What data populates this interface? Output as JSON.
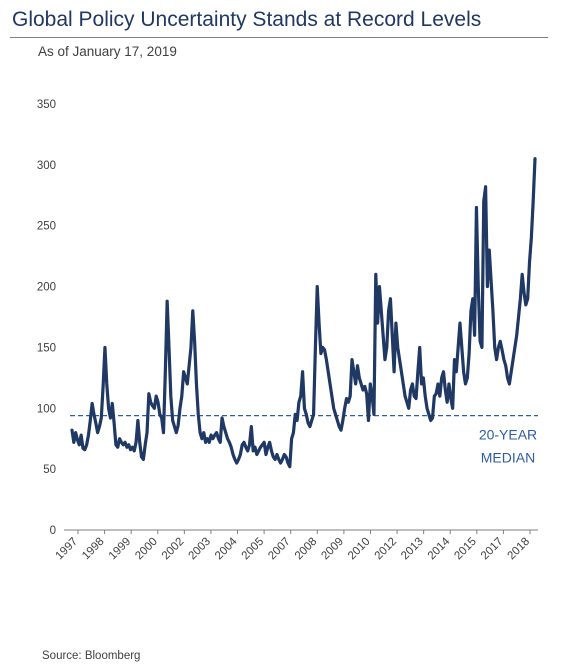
{
  "header": {
    "title": "Global Policy Uncertainty Stands at Record Levels",
    "subtitle": "As of January 17, 2019"
  },
  "footer": {
    "source": "Source: Bloomberg"
  },
  "colors": {
    "series": "#1f3864",
    "median": "#2e5da8",
    "axis": "#7f7f7f",
    "title": "#1f3864"
  },
  "chart_data": {
    "type": "line",
    "title": "Global Policy Uncertainty Stands at Record Levels",
    "subtitle": "As of January 17, 2019",
    "xlabel": "",
    "ylabel": "",
    "ylim": [
      0,
      350
    ],
    "y_ticks": [
      0,
      50,
      100,
      150,
      200,
      250,
      300,
      350
    ],
    "x_ticks": [
      "1997",
      "1998",
      "1999",
      "2000",
      "2002",
      "2003",
      "2004",
      "2005",
      "2007",
      "2008",
      "2009",
      "2010",
      "2012",
      "2013",
      "2014",
      "2015",
      "2017",
      "2018"
    ],
    "grid": false,
    "legend": "none",
    "median": {
      "value": 94,
      "label_line1": "20-YEAR",
      "label_line2": "MEDIAN"
    },
    "series": [
      {
        "values": [
          82,
          72,
          80,
          74,
          70,
          78,
          67,
          66,
          70,
          78,
          90,
          104,
          95,
          88,
          80,
          85,
          92,
          118,
          150,
          120,
          100,
          92,
          104,
          88,
          70,
          68,
          75,
          72,
          70,
          72,
          68,
          70,
          66,
          68,
          65,
          72,
          90,
          72,
          60,
          58,
          70,
          80,
          112,
          105,
          102,
          100,
          110,
          105,
          95,
          92,
          80,
          130,
          188,
          150,
          110,
          90,
          85,
          80,
          86,
          100,
          110,
          130,
          125,
          120,
          135,
          150,
          180,
          155,
          120,
          95,
          80,
          75,
          80,
          72,
          75,
          72,
          78,
          75,
          78,
          80,
          75,
          72,
          92,
          85,
          80,
          75,
          72,
          68,
          62,
          58,
          55,
          58,
          62,
          70,
          72,
          68,
          65,
          70,
          85,
          65,
          68,
          62,
          65,
          68,
          70,
          72,
          62,
          68,
          72,
          65,
          60,
          58,
          62,
          58,
          55,
          58,
          62,
          60,
          55,
          52,
          75,
          80,
          95,
          90,
          105,
          110,
          130,
          100,
          95,
          88,
          85,
          90,
          95,
          150,
          200,
          170,
          145,
          150,
          148,
          140,
          130,
          120,
          110,
          100,
          95,
          90,
          85,
          82,
          90,
          100,
          108,
          105,
          110,
          140,
          130,
          120,
          135,
          125,
          120,
          115,
          118,
          112,
          90,
          120,
          110,
          95,
          210,
          170,
          200,
          180,
          160,
          140,
          150,
          180,
          190,
          160,
          130,
          170,
          150,
          140,
          130,
          120,
          110,
          105,
          100,
          115,
          120,
          110,
          108,
          130,
          150,
          120,
          125,
          110,
          100,
          95,
          90,
          92,
          110,
          112,
          120,
          110,
          125,
          130,
          115,
          105,
          120,
          108,
          100,
          140,
          130,
          150,
          170,
          150,
          130,
          120,
          125,
          145,
          180,
          190,
          160,
          265,
          200,
          155,
          150,
          270,
          282,
          200,
          230,
          205,
          180,
          150,
          140,
          150,
          155,
          148,
          140,
          135,
          125,
          120,
          130,
          140,
          150,
          160,
          175,
          190,
          210,
          195,
          185,
          190,
          220,
          240,
          270,
          305
        ]
      }
    ]
  }
}
